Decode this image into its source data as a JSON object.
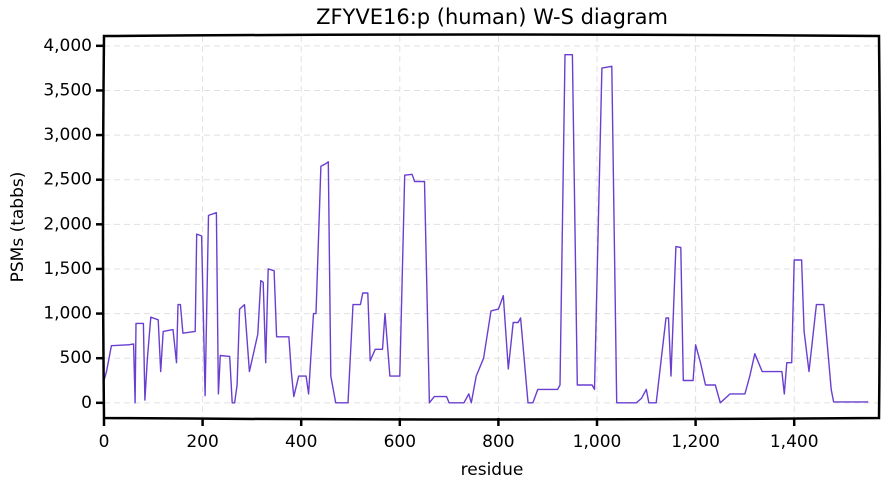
{
  "chart_data": {
    "type": "line",
    "title": "ZFYVE16:p (human) W-S diagram",
    "xlabel": "residue",
    "ylabel": "PSMs (tabbs)",
    "color": "#6a3fd0",
    "grid": true,
    "xlim": [
      0,
      1572
    ],
    "ylim": [
      -170,
      4110
    ],
    "xticks": [
      0,
      200,
      400,
      600,
      800,
      {
        "value": 1000,
        "label": "1,000"
      },
      {
        "value": 1200,
        "label": "1,200"
      },
      {
        "value": 1400,
        "label": "1,400"
      }
    ],
    "yticks": [
      0,
      500,
      {
        "value": 1000,
        "label": "1,000"
      },
      {
        "value": 1500,
        "label": "1,500"
      },
      {
        "value": 2000,
        "label": "2,000"
      },
      {
        "value": 2500,
        "label": "2,500"
      },
      {
        "value": 3000,
        "label": "3,000"
      },
      {
        "value": 3500,
        "label": "3,500"
      },
      {
        "value": 4000,
        "label": "4,000"
      }
    ],
    "x": [
      0,
      5,
      15,
      50,
      60,
      63,
      65,
      80,
      83,
      88,
      95,
      110,
      115,
      120,
      140,
      147,
      150,
      155,
      160,
      185,
      188,
      198,
      205,
      212,
      228,
      232,
      236,
      255,
      260,
      265,
      270,
      275,
      285,
      295,
      305,
      312,
      318,
      323,
      328,
      333,
      345,
      350,
      375,
      380,
      385,
      395,
      410,
      415,
      425,
      430,
      440,
      450,
      455,
      460,
      470,
      495,
      505,
      520,
      525,
      535,
      540,
      550,
      565,
      570,
      580,
      600,
      610,
      625,
      630,
      650,
      660,
      670,
      695,
      700,
      730,
      740,
      745,
      755,
      770,
      785,
      800,
      810,
      820,
      830,
      840,
      845,
      860,
      870,
      880,
      920,
      925,
      935,
      950,
      960,
      990,
      995,
      1010,
      1030,
      1040,
      1080,
      1090,
      1100,
      1105,
      1120,
      1140,
      1145,
      1150,
      1160,
      1170,
      1175,
      1195,
      1200,
      1210,
      1220,
      1240,
      1250,
      1270,
      1300,
      1310,
      1320,
      1335,
      1375,
      1380,
      1385,
      1395,
      1400,
      1415,
      1420,
      1430,
      1445,
      1460,
      1475,
      1480,
      1550
    ],
    "values": [
      250,
      350,
      640,
      650,
      660,
      0,
      890,
      890,
      30,
      500,
      960,
      930,
      350,
      800,
      820,
      450,
      1100,
      1100,
      780,
      800,
      1890,
      1870,
      80,
      2100,
      2130,
      100,
      530,
      520,
      0,
      0,
      200,
      1050,
      1100,
      350,
      600,
      770,
      1370,
      1350,
      450,
      1500,
      1480,
      740,
      740,
      350,
      70,
      300,
      300,
      100,
      1000,
      1000,
      2650,
      2680,
      2700,
      300,
      0,
      0,
      1100,
      1100,
      1230,
      1230,
      470,
      600,
      600,
      1000,
      300,
      300,
      2550,
      2560,
      2480,
      2480,
      0,
      70,
      70,
      0,
      0,
      100,
      0,
      300,
      500,
      1030,
      1050,
      1200,
      380,
      900,
      900,
      950,
      0,
      0,
      150,
      150,
      200,
      3900,
      3900,
      200,
      200,
      150,
      3750,
      3770,
      0,
      0,
      50,
      150,
      0,
      0,
      950,
      950,
      300,
      1750,
      1740,
      250,
      250,
      650,
      450,
      200,
      200,
      0,
      100,
      100,
      300,
      550,
      350,
      350,
      100,
      450,
      450,
      1600,
      1600,
      800,
      350,
      1100,
      1100,
      150,
      10,
      10
    ]
  }
}
